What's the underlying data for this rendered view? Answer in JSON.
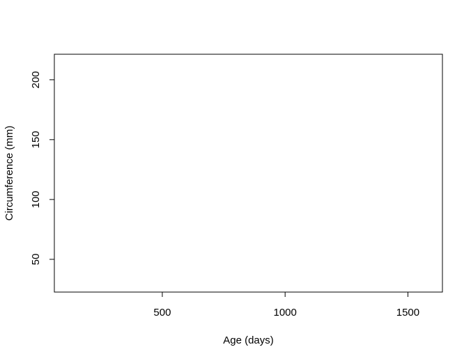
{
  "chart_data": {
    "type": "scatter",
    "title": "",
    "xlabel": "Age (days)",
    "ylabel": "Circumference (mm)",
    "xlim": [
      60.44,
      1640.56
    ],
    "ylim": [
      22.64,
      221.36
    ],
    "x_ticks": [
      500,
      1000,
      1500
    ],
    "x_tick_labels": [
      "500",
      "1000",
      "1500"
    ],
    "y_ticks": [
      50,
      100,
      150,
      200
    ],
    "y_tick_labels": [
      "50",
      "100",
      "150",
      "200"
    ],
    "points": [],
    "grid": false,
    "legend": "none",
    "frame_color": "#000000"
  }
}
